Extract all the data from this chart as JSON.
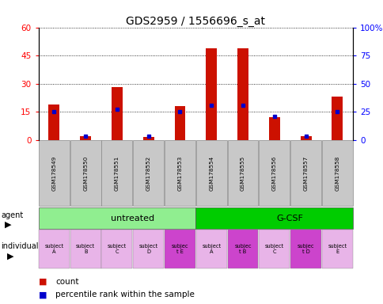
{
  "title": "GDS2959 / 1556696_s_at",
  "samples": [
    "GSM178549",
    "GSM178550",
    "GSM178551",
    "GSM178552",
    "GSM178553",
    "GSM178554",
    "GSM178555",
    "GSM178556",
    "GSM178557",
    "GSM178558"
  ],
  "count_values": [
    19,
    2,
    28,
    1.5,
    18,
    49,
    49,
    12,
    2,
    23
  ],
  "percentile_values": [
    25,
    3,
    27,
    3,
    25,
    31,
    31,
    21,
    3,
    25
  ],
  "ylim_left": [
    0,
    60
  ],
  "ylim_right": [
    0,
    100
  ],
  "yticks_left": [
    0,
    15,
    30,
    45,
    60
  ],
  "yticks_right": [
    0,
    25,
    50,
    75,
    100
  ],
  "ytick_labels_left": [
    "0",
    "15",
    "30",
    "45",
    "60"
  ],
  "ytick_labels_right": [
    "0",
    "25",
    "50",
    "75",
    "100%"
  ],
  "agent_groups": [
    {
      "label": "untreated",
      "start": 0,
      "end": 5,
      "color": "#90ee90"
    },
    {
      "label": "G-CSF",
      "start": 5,
      "end": 10,
      "color": "#00cc00"
    }
  ],
  "individual_labels": [
    "subject\nA",
    "subject\nB",
    "subject\nC",
    "subject\nD",
    "subjec\nt E",
    "subject\nA",
    "subjec\nt B",
    "subject\nC",
    "subjec\nt D",
    "subject\nE"
  ],
  "individual_highlight": [
    4,
    6,
    8
  ],
  "individual_bg_normal": "#e8b4e8",
  "individual_bg_highlight": "#cc44cc",
  "bar_color": "#cc1100",
  "dot_color": "#0000cc",
  "bar_width": 0.35,
  "sample_box_color": "#c8c8c8",
  "title_fontsize": 10,
  "tick_fontsize": 7.5
}
